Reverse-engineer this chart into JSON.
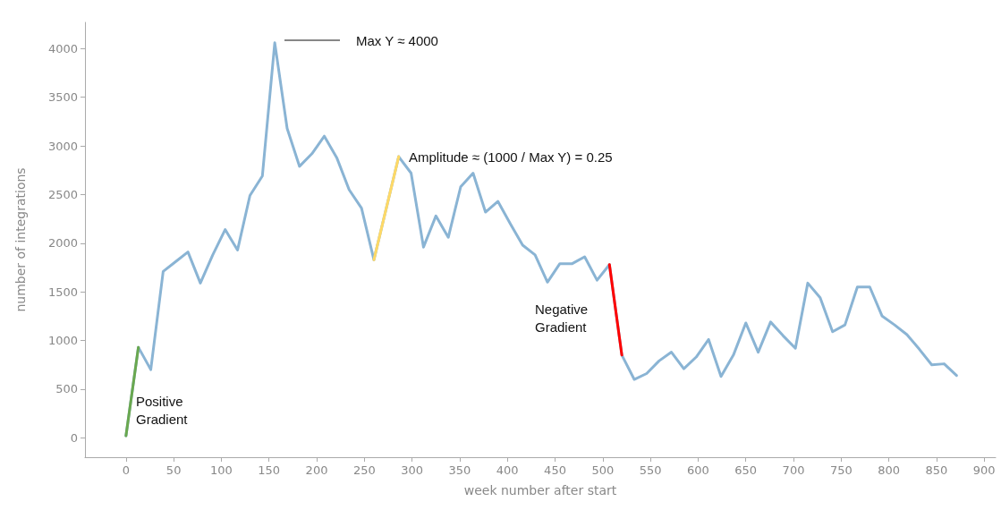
{
  "chart_data": {
    "type": "line",
    "xlabel": "week number after start",
    "ylabel": "number of integrations",
    "xlim": [
      -43,
      912
    ],
    "xticks": [
      0,
      50,
      100,
      150,
      200,
      250,
      300,
      350,
      400,
      450,
      500,
      550,
      600,
      650,
      700,
      750,
      800,
      850,
      900
    ],
    "ylim": [
      -200,
      4270
    ],
    "yticks": [
      0,
      500,
      1000,
      1500,
      2000,
      2500,
      3000,
      3500,
      4000
    ],
    "grid": false,
    "marker": "none",
    "line_style": "solid",
    "series": [
      {
        "color": "#8ab4d4",
        "x": [
          0,
          13,
          26,
          39,
          52,
          65,
          78,
          91,
          104,
          117,
          130,
          143,
          156,
          169,
          182,
          195,
          208,
          221,
          234,
          247,
          260,
          286,
          299,
          312,
          325,
          338,
          351,
          364,
          377,
          390,
          403,
          416,
          429,
          442,
          455,
          468,
          481,
          494,
          507,
          520,
          533,
          546,
          559,
          572,
          585,
          598,
          611,
          624,
          637,
          650,
          663,
          676,
          689,
          702,
          715,
          728,
          741,
          754,
          767,
          780,
          793,
          806,
          819,
          832,
          845,
          858,
          871
        ],
        "values": [
          20,
          930,
          700,
          1710,
          1810,
          1910,
          1590,
          1880,
          2140,
          1930,
          2490,
          2690,
          4060,
          3180,
          2790,
          2920,
          3100,
          2880,
          2550,
          2360,
          1830,
          2890,
          2720,
          1960,
          2280,
          2060,
          2580,
          2720,
          2320,
          2430,
          2200,
          1980,
          1880,
          1600,
          1790,
          1790,
          1860,
          1620,
          1780,
          850,
          600,
          660,
          790,
          880,
          710,
          830,
          1010,
          630,
          850,
          1180,
          880,
          1190,
          1050,
          920,
          1590,
          1440,
          1090,
          1160,
          1550,
          1550,
          1250,
          1160,
          1060,
          910,
          750,
          760,
          640
        ]
      },
      {
        "color": "#6aa84f",
        "x": [
          0,
          13
        ],
        "values": [
          20,
          930
        ]
      },
      {
        "color": "#ffd966",
        "x": [
          260,
          286
        ],
        "values": [
          1830,
          2890
        ]
      },
      {
        "color": "#ff0000",
        "x": [
          507,
          520
        ],
        "values": [
          1780,
          850
        ]
      }
    ],
    "annotations": [
      "Max Y ≈ 4000",
      "Amplitude ≈ (1000 / Max Y) = 0.25",
      "Positive\nGradient",
      "Negative\nGradient"
    ]
  }
}
